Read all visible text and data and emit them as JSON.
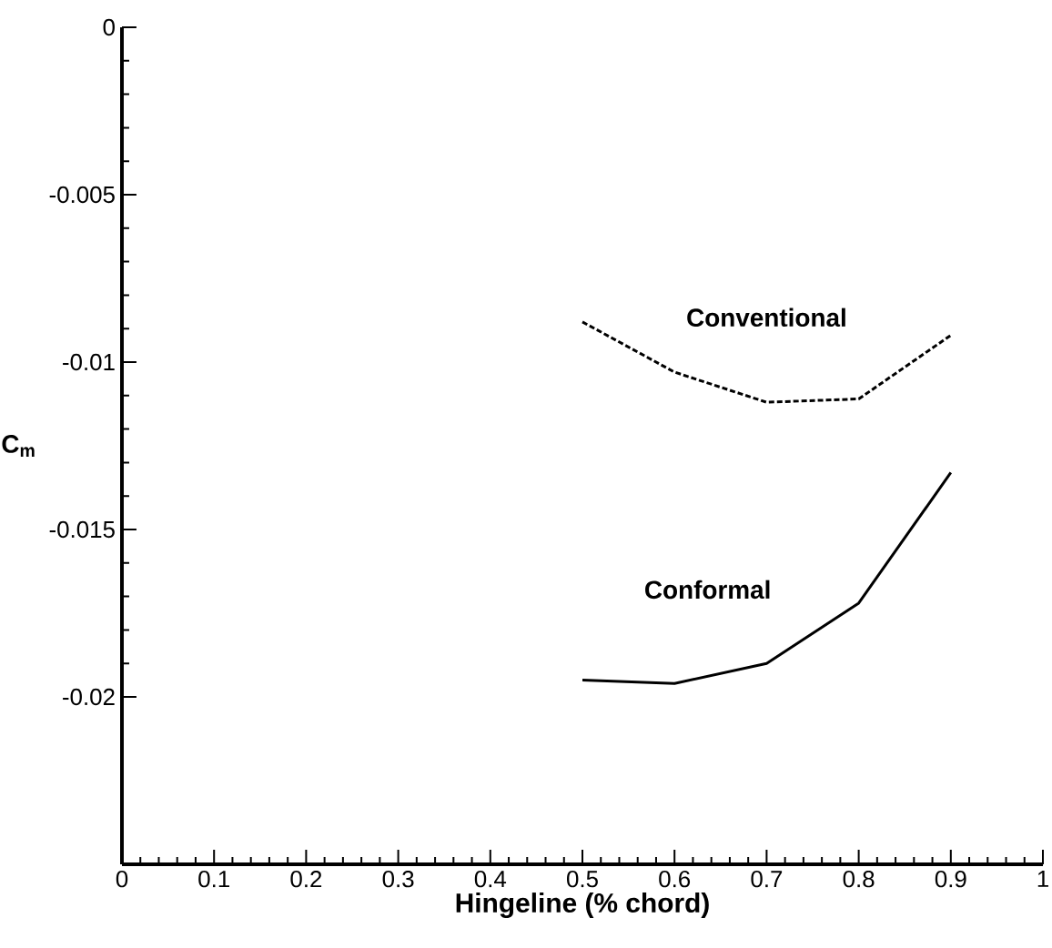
{
  "chart_data": {
    "type": "line",
    "xlabel": "Hingeline (% chord)",
    "ylabel": "C$_{m}$",
    "x": [
      0.5,
      0.6,
      0.7,
      0.8,
      0.9
    ],
    "series": [
      {
        "name": "Conventional",
        "color": "#000000",
        "line_style": "dashed",
        "values": [
          -0.0088,
          -0.0103,
          -0.0112,
          -0.0111,
          -0.0092
        ]
      },
      {
        "name": "Conformal",
        "color": "#000000",
        "line_style": "solid",
        "values": [
          -0.0195,
          -0.0196,
          -0.019,
          -0.0172,
          -0.0133
        ]
      }
    ],
    "xlim": [
      0,
      1
    ],
    "ylim": [
      -0.025,
      0
    ],
    "xticks": [
      0,
      0.1,
      0.2,
      0.3,
      0.4,
      0.5,
      0.6,
      0.7,
      0.8,
      0.9,
      1
    ],
    "yticks": [
      {
        "value": -0.02,
        "label": "-0.02"
      },
      {
        "value": -0.015,
        "label": "-0.015"
      },
      {
        "value": -0.01,
        "label": "-0.01"
      },
      {
        "value": -0.005,
        "label": "-0.005"
      },
      {
        "value": 0,
        "label": "0"
      }
    ],
    "grid": false,
    "marker": "none"
  }
}
